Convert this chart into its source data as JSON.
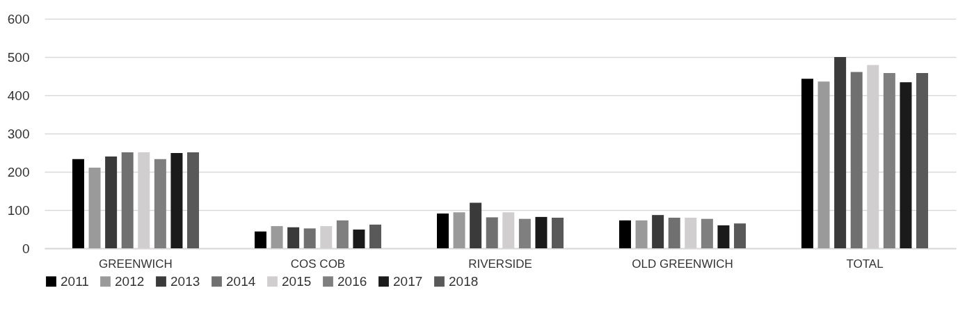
{
  "chart_data": {
    "type": "bar",
    "categories": [
      "GREENWICH",
      "COS COB",
      "RIVERSIDE",
      "OLD GREENWICH",
      "TOTAL"
    ],
    "series": [
      {
        "name": "2011",
        "color": "#000000",
        "values": [
          233,
          44,
          91,
          73,
          443
        ]
      },
      {
        "name": "2012",
        "color": "#9a9a9a",
        "values": [
          211,
          58,
          94,
          73,
          436
        ]
      },
      {
        "name": "2013",
        "color": "#3a3a3a",
        "values": [
          240,
          55,
          119,
          87,
          500
        ]
      },
      {
        "name": "2014",
        "color": "#707070",
        "values": [
          251,
          52,
          81,
          80,
          461
        ]
      },
      {
        "name": "2015",
        "color": "#d0cece",
        "values": [
          251,
          58,
          94,
          80,
          479
        ]
      },
      {
        "name": "2016",
        "color": "#7f7f7f",
        "values": [
          233,
          73,
          77,
          77,
          458
        ]
      },
      {
        "name": "2017",
        "color": "#1a1a1a",
        "values": [
          249,
          49,
          82,
          60,
          434
        ]
      },
      {
        "name": "2018",
        "color": "#595959",
        "values": [
          251,
          62,
          80,
          65,
          458
        ]
      }
    ],
    "ylim": [
      0,
      600
    ],
    "yticks": [
      0,
      100,
      200,
      300,
      400,
      500,
      600
    ],
    "grid": "y",
    "legend": "bottom"
  }
}
